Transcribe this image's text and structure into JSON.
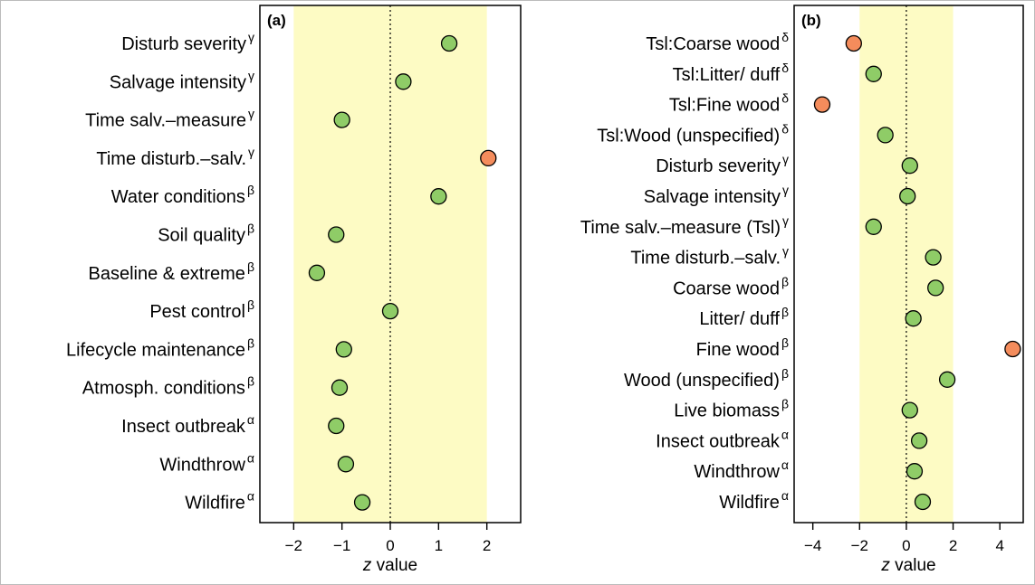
{
  "chart_data": [
    {
      "type": "scatter",
      "panel_label": "(a)",
      "xlabel_italic": "z",
      "xlabel_rest": " value",
      "xlim": [
        -2.7,
        2.7
      ],
      "xticks": [
        -2,
        -1,
        0,
        1,
        2
      ],
      "tick_labels": [
        "−2",
        "−1",
        "0",
        "1",
        "2"
      ],
      "band": [
        -2,
        2
      ],
      "reference_line": 0,
      "grid": false,
      "colors": {
        "normal": "#8fcc67",
        "outlier": "#f48c5c",
        "band": "#fdfbc4"
      },
      "categories": [
        {
          "label": "Disturb severity",
          "superscript": "γ",
          "value": 1.22,
          "outlier": false
        },
        {
          "label": "Salvage intensity",
          "superscript": "γ",
          "value": 0.27,
          "outlier": false
        },
        {
          "label": "Time salv.–measure",
          "superscript": "γ",
          "value": -1.0,
          "outlier": false
        },
        {
          "label": "Time disturb.–salv.",
          "superscript": "γ",
          "value": 2.03,
          "outlier": true
        },
        {
          "label": "Water conditions",
          "superscript": "β",
          "value": 1.0,
          "outlier": false
        },
        {
          "label": "Soil quality",
          "superscript": "β",
          "value": -1.12,
          "outlier": false
        },
        {
          "label": "Baseline & extreme",
          "superscript": "β",
          "value": -1.52,
          "outlier": false
        },
        {
          "label": "Pest control",
          "superscript": "β",
          "value": 0.0,
          "outlier": false
        },
        {
          "label": "Lifecycle maintenance",
          "superscript": "β",
          "value": -0.96,
          "outlier": false
        },
        {
          "label": "Atmosph. conditions",
          "superscript": "β",
          "value": -1.05,
          "outlier": false
        },
        {
          "label": "Insect outbreak",
          "superscript": "α",
          "value": -1.12,
          "outlier": false
        },
        {
          "label": "Windthrow",
          "superscript": "α",
          "value": -0.92,
          "outlier": false
        },
        {
          "label": "Wildfire",
          "superscript": "α",
          "value": -0.58,
          "outlier": false
        }
      ]
    },
    {
      "type": "scatter",
      "panel_label": "(b)",
      "xlabel_italic": "z",
      "xlabel_rest": " value",
      "xlim": [
        -4.8,
        5.0
      ],
      "xticks": [
        -4,
        -2,
        0,
        2,
        4
      ],
      "tick_labels": [
        "−4",
        "−2",
        "0",
        "2",
        "4"
      ],
      "band": [
        -2,
        2
      ],
      "reference_line": 0,
      "grid": false,
      "colors": {
        "normal": "#8fcc67",
        "outlier": "#f48c5c",
        "band": "#fdfbc4"
      },
      "categories": [
        {
          "label": "Tsl:Coarse wood",
          "superscript": "δ",
          "value": -2.25,
          "outlier": true
        },
        {
          "label": "Tsl:Litter/ duff",
          "superscript": "δ",
          "value": -1.4,
          "outlier": false
        },
        {
          "label": "Tsl:Fine wood",
          "superscript": "δ",
          "value": -3.6,
          "outlier": true
        },
        {
          "label": "Tsl:Wood (unspecified)",
          "superscript": "δ",
          "value": -0.9,
          "outlier": false
        },
        {
          "label": "Disturb severity",
          "superscript": "γ",
          "value": 0.15,
          "outlier": false
        },
        {
          "label": "Salvage intensity",
          "superscript": "γ",
          "value": 0.05,
          "outlier": false
        },
        {
          "label": "Time salv.–measure (Tsl)",
          "superscript": "γ",
          "value": -1.4,
          "outlier": false
        },
        {
          "label": "Time disturb.–salv.",
          "superscript": "γ",
          "value": 1.15,
          "outlier": false
        },
        {
          "label": "Coarse wood",
          "superscript": "β",
          "value": 1.25,
          "outlier": false
        },
        {
          "label": "Litter/ duff",
          "superscript": "β",
          "value": 0.3,
          "outlier": false
        },
        {
          "label": "Fine wood",
          "superscript": "β",
          "value": 4.55,
          "outlier": true
        },
        {
          "label": "Wood (unspecified)",
          "superscript": "β",
          "value": 1.75,
          "outlier": false
        },
        {
          "label": "Live biomass",
          "superscript": "β",
          "value": 0.15,
          "outlier": false
        },
        {
          "label": "Insect outbreak",
          "superscript": "α",
          "value": 0.55,
          "outlier": false
        },
        {
          "label": "Windthrow",
          "superscript": "α",
          "value": 0.35,
          "outlier": false
        },
        {
          "label": "Wildfire",
          "superscript": "α",
          "value": 0.7,
          "outlier": false
        }
      ]
    }
  ]
}
